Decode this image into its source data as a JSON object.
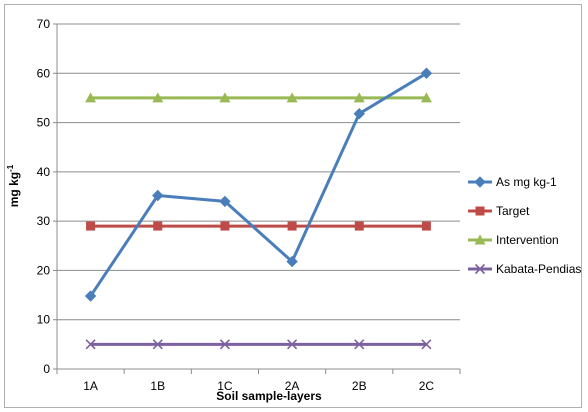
{
  "chart_data": {
    "type": "line",
    "categories": [
      "1A",
      "1B",
      "1C",
      "2A",
      "2B",
      "2C"
    ],
    "xlabel": "Soil sample-layers",
    "ylabel": "mg kg",
    "ylabel_sup": "-1",
    "ylim": [
      0,
      70
    ],
    "yticks": [
      0,
      10,
      20,
      30,
      40,
      50,
      60,
      70
    ],
    "grid": "horizontal",
    "legend_position": "right",
    "series": [
      {
        "name": "As  mg kg-1",
        "color": "#4a7ebb",
        "marker": "diamond",
        "values": [
          14.8,
          35.2,
          34.0,
          21.8,
          51.8,
          60.0
        ]
      },
      {
        "name": "Target",
        "color": "#be4b48",
        "marker": "square",
        "values": [
          29,
          29,
          29,
          29,
          29,
          29
        ]
      },
      {
        "name": "Intervention",
        "color": "#98b954",
        "marker": "triangle",
        "values": [
          55,
          55,
          55,
          55,
          55,
          55
        ]
      },
      {
        "name": "Kabata-Pendias",
        "color": "#7d60a0",
        "marker": "x",
        "values": [
          5,
          5,
          5,
          5,
          5,
          5
        ]
      }
    ]
  }
}
